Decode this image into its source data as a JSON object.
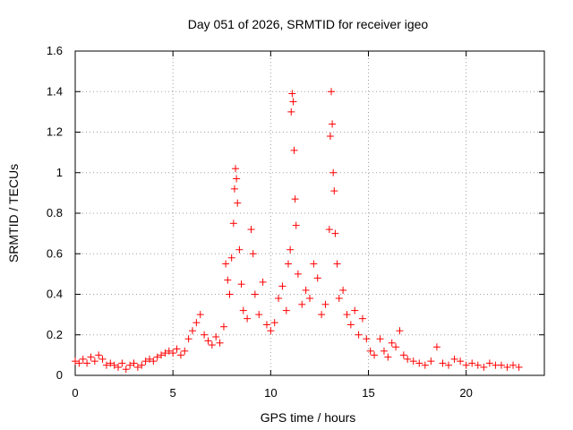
{
  "chart_data": {
    "type": "scatter",
    "title": "Day 051 of 2026, SRMTID for receiver igeo",
    "xlabel": "GPS time / hours",
    "ylabel": "SRMTID / TECUs",
    "xlim": [
      0,
      24
    ],
    "ylim": [
      0,
      1.6
    ],
    "xticks": [
      0,
      5,
      10,
      15,
      20
    ],
    "xtick_labels": [
      "0",
      "5",
      "10",
      "15",
      "20"
    ],
    "yticks": [
      0,
      0.2,
      0.4,
      0.6,
      0.8,
      1,
      1.2,
      1.4,
      1.6
    ],
    "ytick_labels": [
      "0",
      "0.2",
      "0.4",
      "0.6",
      "0.8",
      "1",
      "1.2",
      "1.4",
      "1.6"
    ],
    "grid": true,
    "marker": "plus",
    "color": "#ff0000",
    "series": [
      {
        "name": "SRMTID",
        "points": [
          [
            0.0,
            0.07
          ],
          [
            0.2,
            0.06
          ],
          [
            0.4,
            0.08
          ],
          [
            0.6,
            0.06
          ],
          [
            0.8,
            0.09
          ],
          [
            1.0,
            0.07
          ],
          [
            1.2,
            0.1
          ],
          [
            1.4,
            0.08
          ],
          [
            1.6,
            0.05
          ],
          [
            1.8,
            0.06
          ],
          [
            2.0,
            0.05
          ],
          [
            2.2,
            0.04
          ],
          [
            2.4,
            0.06
          ],
          [
            2.6,
            0.03
          ],
          [
            2.8,
            0.05
          ],
          [
            3.0,
            0.06
          ],
          [
            3.2,
            0.04
          ],
          [
            3.4,
            0.05
          ],
          [
            3.6,
            0.07
          ],
          [
            3.8,
            0.08
          ],
          [
            4.0,
            0.07
          ],
          [
            4.2,
            0.09
          ],
          [
            4.4,
            0.1
          ],
          [
            4.6,
            0.11
          ],
          [
            4.8,
            0.12
          ],
          [
            5.0,
            0.11
          ],
          [
            5.2,
            0.13
          ],
          [
            5.4,
            0.1
          ],
          [
            5.6,
            0.12
          ],
          [
            5.8,
            0.18
          ],
          [
            6.0,
            0.22
          ],
          [
            6.2,
            0.26
          ],
          [
            6.4,
            0.3
          ],
          [
            6.6,
            0.2
          ],
          [
            6.8,
            0.17
          ],
          [
            7.0,
            0.15
          ],
          [
            7.2,
            0.19
          ],
          [
            7.4,
            0.16
          ],
          [
            7.6,
            0.24
          ],
          [
            7.7,
            0.55
          ],
          [
            7.8,
            0.47
          ],
          [
            7.9,
            0.4
          ],
          [
            8.0,
            0.58
          ],
          [
            8.1,
            0.75
          ],
          [
            8.15,
            0.92
          ],
          [
            8.2,
            1.02
          ],
          [
            8.25,
            0.97
          ],
          [
            8.3,
            0.85
          ],
          [
            8.4,
            0.62
          ],
          [
            8.5,
            0.45
          ],
          [
            8.6,
            0.32
          ],
          [
            8.8,
            0.28
          ],
          [
            9.0,
            0.72
          ],
          [
            9.1,
            0.6
          ],
          [
            9.2,
            0.4
          ],
          [
            9.4,
            0.3
          ],
          [
            9.6,
            0.46
          ],
          [
            9.8,
            0.25
          ],
          [
            10.0,
            0.22
          ],
          [
            10.2,
            0.26
          ],
          [
            10.4,
            0.38
          ],
          [
            10.6,
            0.44
          ],
          [
            10.8,
            0.32
          ],
          [
            10.9,
            0.55
          ],
          [
            11.0,
            0.62
          ],
          [
            11.05,
            1.3
          ],
          [
            11.1,
            1.39
          ],
          [
            11.15,
            1.35
          ],
          [
            11.2,
            1.11
          ],
          [
            11.25,
            0.87
          ],
          [
            11.3,
            0.74
          ],
          [
            11.4,
            0.5
          ],
          [
            11.6,
            0.35
          ],
          [
            11.8,
            0.42
          ],
          [
            12.0,
            0.38
          ],
          [
            12.2,
            0.55
          ],
          [
            12.4,
            0.48
          ],
          [
            12.6,
            0.3
          ],
          [
            12.8,
            0.35
          ],
          [
            13.0,
            0.72
          ],
          [
            13.05,
            1.18
          ],
          [
            13.1,
            1.4
          ],
          [
            13.15,
            1.24
          ],
          [
            13.2,
            1.0
          ],
          [
            13.25,
            0.91
          ],
          [
            13.3,
            0.7
          ],
          [
            13.4,
            0.55
          ],
          [
            13.5,
            0.38
          ],
          [
            13.7,
            0.42
          ],
          [
            13.9,
            0.3
          ],
          [
            14.1,
            0.25
          ],
          [
            14.3,
            0.32
          ],
          [
            14.5,
            0.2
          ],
          [
            14.7,
            0.28
          ],
          [
            14.9,
            0.18
          ],
          [
            15.1,
            0.12
          ],
          [
            15.3,
            0.1
          ],
          [
            15.6,
            0.18
          ],
          [
            15.8,
            0.12
          ],
          [
            16.0,
            0.09
          ],
          [
            16.2,
            0.16
          ],
          [
            16.4,
            0.14
          ],
          [
            16.6,
            0.22
          ],
          [
            16.8,
            0.1
          ],
          [
            17.0,
            0.08
          ],
          [
            17.3,
            0.07
          ],
          [
            17.6,
            0.06
          ],
          [
            17.9,
            0.05
          ],
          [
            18.2,
            0.07
          ],
          [
            18.5,
            0.14
          ],
          [
            18.8,
            0.06
          ],
          [
            19.1,
            0.05
          ],
          [
            19.4,
            0.08
          ],
          [
            19.7,
            0.07
          ],
          [
            20.0,
            0.05
          ],
          [
            20.3,
            0.06
          ],
          [
            20.6,
            0.05
          ],
          [
            20.9,
            0.04
          ],
          [
            21.2,
            0.06
          ],
          [
            21.5,
            0.05
          ],
          [
            21.8,
            0.05
          ],
          [
            22.1,
            0.04
          ],
          [
            22.4,
            0.05
          ],
          [
            22.7,
            0.04
          ]
        ]
      }
    ]
  }
}
